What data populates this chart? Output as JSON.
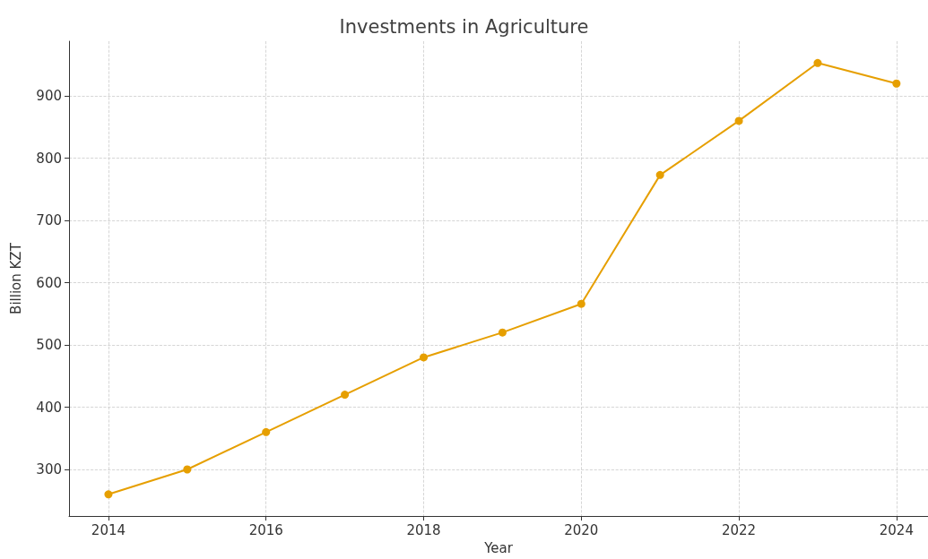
{
  "chart_data": {
    "type": "line",
    "title": "Investments in Agriculture",
    "xlabel": "Year",
    "ylabel": "Billion KZT",
    "x": [
      2014,
      2015,
      2016,
      2017,
      2018,
      2019,
      2020,
      2021,
      2022,
      2023,
      2024
    ],
    "series": [
      {
        "color": "#e69f00",
        "values": [
          260,
          300,
          360,
          420,
          480,
          520,
          566,
          773,
          860,
          953,
          920
        ]
      }
    ],
    "xlim": [
      2013.5,
      2024.4
    ],
    "xticks": [
      2014,
      2016,
      2018,
      2020,
      2022,
      2024
    ],
    "ylim": [
      225,
      988
    ],
    "yticks": [
      300,
      400,
      500,
      600,
      700,
      800,
      900
    ],
    "grid": true,
    "marker": "circle",
    "line_style": "solid"
  }
}
